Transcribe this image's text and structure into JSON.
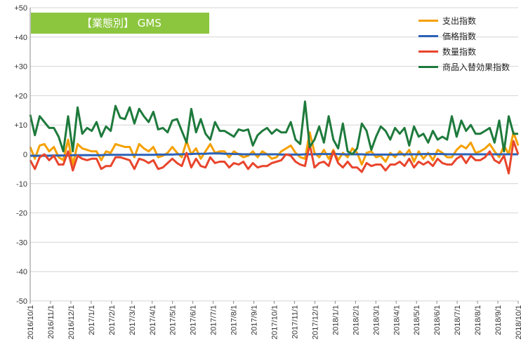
{
  "chart_data": {
    "type": "line",
    "title": "【業態別】 GMS",
    "ylim": [
      -50,
      50
    ],
    "yticks": [
      "+50",
      "+40",
      "+30",
      "+20",
      "+10",
      "0",
      "-10",
      "-20",
      "-30",
      "-40",
      "-50"
    ],
    "ytick_values": [
      50,
      40,
      30,
      20,
      10,
      0,
      -10,
      -20,
      -30,
      -40,
      -50
    ],
    "xticks": [
      "2016/10/1",
      "2016/11/1",
      "2016/12/1",
      "2017/1/1",
      "2017/2/1",
      "2017/3/1",
      "2017/4/1",
      "2017/5/1",
      "2017/6/1",
      "2017/7/1",
      "2017/8/1",
      "2017/9/1",
      "2017/10/1",
      "2017/11/1",
      "2017/12/1",
      "2018/1/1",
      "2018/2/1",
      "2018/3/1",
      "2018/4/1",
      "2018/5/1",
      "2018/6/1",
      "2018/7/1",
      "2018/8/1",
      "2018/9/1",
      "2018/10/1"
    ],
    "grid": true,
    "legend_position": "top-right",
    "series": [
      {
        "name": "支出指数",
        "color": "#f5a000",
        "values": [
          2.5,
          -1.5,
          3.0,
          3.5,
          1.0,
          2.5,
          -1.0,
          -2.0,
          5.0,
          -3.5,
          3.5,
          2.0,
          1.5,
          1.0,
          1.0,
          -2.0,
          1.0,
          0.5,
          3.5,
          3.0,
          2.5,
          2.5,
          -1.0,
          3.5,
          2.0,
          1.0,
          2.5,
          -1.0,
          -0.5,
          0.5,
          2.5,
          0.5,
          -1.0,
          4.5,
          0.0,
          2.0,
          -1.5,
          1.0,
          3.5,
          0.5,
          1.0,
          1.0,
          -1.0,
          1.0,
          0.0,
          -1.0,
          -0.5,
          1.0,
          -1.0,
          1.0,
          0.0,
          -1.5,
          -1.0,
          1.0,
          2.0,
          3.0,
          0.5,
          -1.0,
          -1.5,
          7.5,
          0.5,
          -1.0,
          1.5,
          -1.5,
          1.5,
          -2.0,
          0.5,
          -1.0,
          2.0,
          0.5,
          -3.5,
          0.5,
          1.0,
          -1.0,
          -0.5,
          -2.5,
          0.5,
          -1.0,
          1.0,
          -0.5,
          1.5,
          -2.5,
          1.0,
          -1.5,
          0.5,
          -2.0,
          1.5,
          0.5,
          -1.0,
          -1.0,
          1.5,
          3.0,
          2.0,
          4.0,
          0.5,
          1.0,
          2.0,
          3.5,
          1.0,
          -1.0,
          3.0,
          0.0,
          7.5,
          3.0
        ],
        "style": "solid"
      },
      {
        "name": "価格指数",
        "color": "#2a62b8",
        "values": [
          -0.5,
          -0.5,
          -0.5,
          -0.5,
          -0.5,
          -0.4,
          -0.4,
          -0.4,
          -0.4,
          -0.3,
          -0.3,
          -0.3,
          -0.3,
          -0.3,
          -0.3,
          -0.3,
          -0.2,
          -0.2,
          -0.2,
          -0.2,
          -0.2,
          -0.2,
          -0.2,
          -0.2,
          -0.2,
          -0.2,
          -0.2,
          -0.1,
          -0.1,
          -0.1,
          -0.1,
          0.0,
          0.0,
          0.1,
          0.1,
          0.2,
          0.2,
          0.2,
          0.3,
          0.3,
          0.3,
          0.2,
          0.2,
          0.1,
          0.1,
          0.0,
          0.0,
          0.0,
          0.0,
          0.0,
          0.0,
          0.0,
          0.0,
          -0.1,
          -0.1,
          -0.1,
          -0.1,
          -0.1,
          0.0,
          0.0,
          0.0,
          0.1,
          0.1,
          0.1,
          0.1,
          0.1,
          0.0,
          0.0,
          0.0,
          0.0,
          0.0,
          -0.1,
          -0.1,
          -0.1,
          -0.1,
          -0.1,
          -0.1,
          -0.1,
          0.0,
          0.0,
          0.0,
          0.0,
          0.0,
          0.1,
          0.1,
          0.1,
          0.1,
          0.1,
          0.0,
          0.0,
          0.0,
          0.0,
          0.0,
          0.0,
          0.0,
          0.0,
          0.0,
          0.0,
          0.0,
          0.0,
          0.0,
          0.0,
          0.0,
          0.0
        ],
        "style": "solid"
      },
      {
        "name": "数量指数",
        "color": "#e8452c",
        "values": [
          -2.0,
          -5.0,
          -1.0,
          0.0,
          -2.0,
          -0.5,
          -3.5,
          -3.5,
          1.0,
          -5.5,
          -0.5,
          -1.5,
          -2.0,
          -1.5,
          -1.5,
          -5.0,
          -4.0,
          -4.0,
          -1.0,
          -1.0,
          -1.5,
          -2.0,
          -5.0,
          -1.5,
          -2.0,
          -3.0,
          -2.0,
          -5.0,
          -4.5,
          -3.0,
          -1.5,
          -3.0,
          -4.0,
          0.5,
          -4.5,
          -1.5,
          -4.0,
          -4.5,
          -1.0,
          -3.0,
          -2.5,
          -2.5,
          -4.5,
          -3.0,
          -3.5,
          -2.5,
          -5.0,
          -3.0,
          -4.5,
          -4.0,
          -4.0,
          -3.0,
          -2.5,
          -2.0,
          0.0,
          -0.5,
          -2.5,
          -3.5,
          -4.0,
          3.5,
          -4.5,
          -3.0,
          -2.5,
          -4.0,
          1.0,
          -3.0,
          -4.5,
          -2.5,
          -4.5,
          -4.5,
          -6.0,
          -3.0,
          -4.0,
          -3.5,
          -3.5,
          -5.5,
          -3.5,
          -3.5,
          -2.5,
          -4.0,
          -1.5,
          -4.5,
          -2.5,
          -3.5,
          -2.5,
          -4.0,
          -1.5,
          -3.0,
          -3.5,
          -3.5,
          -1.5,
          -0.5,
          -3.0,
          -0.5,
          -2.0,
          -2.0,
          -1.0,
          1.0,
          -2.0,
          -3.0,
          -0.5,
          -6.5,
          4.5,
          0.0
        ],
        "style": "solid"
      },
      {
        "name": "商品入替効果指数",
        "color": "#1e7a3c",
        "values": [
          13.5,
          6.5,
          13.0,
          11.0,
          9.0,
          9.0,
          6.0,
          1.0,
          13.0,
          1.0,
          16.0,
          7.0,
          9.0,
          8.0,
          11.0,
          6.0,
          9.5,
          8.0,
          16.5,
          12.5,
          12.0,
          16.0,
          10.5,
          15.5,
          13.0,
          11.0,
          14.5,
          8.5,
          9.0,
          7.5,
          11.5,
          12.0,
          8.0,
          4.0,
          15.5,
          7.5,
          12.0,
          7.0,
          5.0,
          11.0,
          8.0,
          8.0,
          7.0,
          6.0,
          8.5,
          8.0,
          8.5,
          3.0,
          6.5,
          8.0,
          9.0,
          7.0,
          8.5,
          7.5,
          7.5,
          11.0,
          5.0,
          3.5,
          18.0,
          2.5,
          5.0,
          9.5,
          4.0,
          13.0,
          5.0,
          2.0,
          10.5,
          1.0,
          0.0,
          2.0,
          10.5,
          8.0,
          1.5,
          6.0,
          9.5,
          8.0,
          5.0,
          9.0,
          7.0,
          9.0,
          3.0,
          9.5,
          6.0,
          7.0,
          4.0,
          8.0,
          5.0,
          6.0,
          5.0,
          13.0,
          6.0,
          11.5,
          8.0,
          10.0,
          7.0,
          7.0,
          8.0,
          9.0,
          4.0,
          11.5,
          1.0,
          13.0,
          7.0,
          7.0
        ]
      }
    ]
  }
}
